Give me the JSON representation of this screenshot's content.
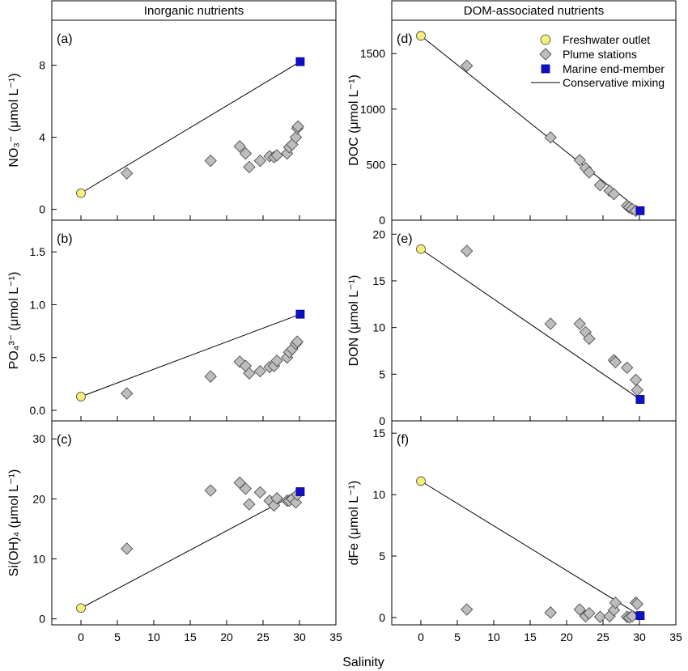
{
  "figure": {
    "x_axis_label": "Salinity",
    "column_headers": [
      "Inorganic nutrients",
      "DOM-associated nutrients"
    ],
    "legend": {
      "freshwater": "Freshwater outlet",
      "plume": "Plume stations",
      "marine": "Marine end-member",
      "mixing": "Conservative mixing"
    },
    "colors": {
      "freshwater": "#f4ee7a",
      "plume": "#bdbdbd",
      "marine": "#1010c8",
      "line": "#000000"
    }
  },
  "chart_data": [
    {
      "type": "scatter",
      "panel": "(a)",
      "column": "Inorganic nutrients",
      "ylabel": "NO₃⁻ (μmol L⁻¹)",
      "xlim": [
        -4,
        35
      ],
      "ylim": [
        -0.6,
        10.5
      ],
      "xticks": [],
      "yticks": [
        0,
        4,
        8
      ],
      "freshwater": {
        "x": 0,
        "y": 0.9
      },
      "marine": {
        "x": 30.1,
        "y": 8.2
      },
      "mixing_line": [
        [
          0,
          0.9
        ],
        [
          30.1,
          8.2
        ]
      ],
      "plume": {
        "x": [
          6.3,
          17.8,
          21.8,
          22.6,
          23.1,
          24.6,
          25.9,
          26.5,
          26.9,
          28.3,
          28.6,
          29.0,
          29.5,
          29.7,
          29.8
        ],
        "y": [
          2.0,
          2.7,
          3.5,
          3.1,
          2.35,
          2.7,
          2.95,
          2.9,
          3.0,
          3.1,
          3.45,
          3.6,
          4.0,
          4.5,
          4.6
        ]
      }
    },
    {
      "type": "scatter",
      "panel": "(b)",
      "column": "Inorganic nutrients",
      "ylabel": "PO₄³⁻ (μmol L⁻¹)",
      "xlim": [
        -4,
        35
      ],
      "ylim": [
        -0.1,
        1.8
      ],
      "xticks": [],
      "yticks": [
        0.0,
        0.5,
        1.0,
        1.5
      ],
      "freshwater": {
        "x": 0,
        "y": 0.13
      },
      "marine": {
        "x": 30.1,
        "y": 0.91
      },
      "mixing_line": [
        [
          0,
          0.13
        ],
        [
          30.1,
          0.91
        ]
      ],
      "plume": {
        "x": [
          6.3,
          17.8,
          21.8,
          22.6,
          23.1,
          24.6,
          25.9,
          26.5,
          26.9,
          28.3,
          28.6,
          29.0,
          29.5,
          29.7
        ],
        "y": [
          0.16,
          0.32,
          0.46,
          0.42,
          0.35,
          0.37,
          0.41,
          0.42,
          0.47,
          0.5,
          0.55,
          0.58,
          0.63,
          0.65
        ]
      }
    },
    {
      "type": "scatter",
      "panel": "(c)",
      "column": "Inorganic nutrients",
      "ylabel": "Si(OH)₄ (μmol L⁻¹)",
      "xlim": [
        -4,
        35
      ],
      "ylim": [
        -1,
        33
      ],
      "xticks": [
        0,
        5,
        10,
        15,
        20,
        25,
        30,
        35
      ],
      "yticks": [
        0,
        10,
        20,
        30
      ],
      "freshwater": {
        "x": 0,
        "y": 1.8
      },
      "marine": {
        "x": 30.1,
        "y": 21.2
      },
      "mixing_line": [
        [
          0,
          1.8
        ],
        [
          30.1,
          21.2
        ]
      ],
      "plume": {
        "x": [
          6.3,
          17.8,
          21.8,
          22.6,
          23.1,
          24.6,
          25.9,
          26.5,
          26.9,
          28.3,
          28.6,
          29.0,
          29.5,
          29.7
        ],
        "y": [
          11.7,
          21.4,
          22.7,
          21.7,
          19.1,
          21.1,
          19.7,
          18.9,
          20.1,
          19.7,
          19.7,
          20.0,
          19.4,
          20.7
        ]
      }
    },
    {
      "type": "scatter",
      "panel": "(d)",
      "column": "DOM-associated nutrients",
      "ylabel": "DOC (μmol L⁻¹)",
      "xlim": [
        -4,
        35
      ],
      "ylim": [
        0,
        1800
      ],
      "xticks": [],
      "yticks": [
        0,
        500,
        1000,
        1500
      ],
      "freshwater": {
        "x": 0,
        "y": 1660
      },
      "marine": {
        "x": 30.1,
        "y": 85
      },
      "mixing_line": [
        [
          0,
          1660
        ],
        [
          30.1,
          85
        ]
      ],
      "plume": {
        "x": [
          6.3,
          17.8,
          21.8,
          22.6,
          23.1,
          24.6,
          25.9,
          26.5,
          28.3,
          28.6,
          29.0,
          29.5
        ],
        "y": [
          1390,
          745,
          540,
          470,
          430,
          315,
          265,
          235,
          130,
          115,
          100,
          85
        ]
      }
    },
    {
      "type": "scatter",
      "panel": "(e)",
      "column": "DOM-associated nutrients",
      "ylabel": "DON (μmol L⁻¹)",
      "xlim": [
        -4,
        35
      ],
      "ylim": [
        0,
        21.5
      ],
      "xticks": [],
      "yticks": [
        0,
        5,
        10,
        15,
        20
      ],
      "freshwater": {
        "x": 0,
        "y": 18.4
      },
      "marine": {
        "x": 30.1,
        "y": 2.3
      },
      "mixing_line": [
        [
          0,
          18.4
        ],
        [
          30.1,
          2.3
        ]
      ],
      "plume": {
        "x": [
          6.3,
          17.8,
          21.8,
          22.6,
          23.1,
          26.5,
          26.7,
          28.3,
          29.5,
          29.7
        ],
        "y": [
          18.2,
          10.4,
          10.4,
          9.5,
          8.8,
          6.5,
          6.3,
          5.7,
          4.4,
          3.3
        ]
      }
    },
    {
      "type": "scatter",
      "panel": "(f)",
      "column": "DOM-associated nutrients",
      "ylabel": "dFe (μmol L⁻¹)",
      "xlim": [
        -4,
        35
      ],
      "ylim": [
        -0.6,
        16
      ],
      "xticks": [
        0,
        5,
        10,
        15,
        20,
        25,
        30,
        35
      ],
      "yticks": [
        0,
        5,
        10,
        15
      ],
      "freshwater": {
        "x": 0,
        "y": 11.1
      },
      "marine": {
        "x": 30.1,
        "y": 0.15
      },
      "mixing_line": [
        [
          0,
          11.1
        ],
        [
          30.1,
          0.15
        ]
      ],
      "plume": {
        "x": [
          6.3,
          17.8,
          21.8,
          22.6,
          23.1,
          24.6,
          25.9,
          26.5,
          26.7,
          28.3,
          28.6,
          29.0,
          29.5,
          29.7
        ],
        "y": [
          0.65,
          0.4,
          0.65,
          0.1,
          0.35,
          0.05,
          0.1,
          0.6,
          1.2,
          0.05,
          0.0,
          0.1,
          1.2,
          1.1
        ]
      }
    }
  ]
}
